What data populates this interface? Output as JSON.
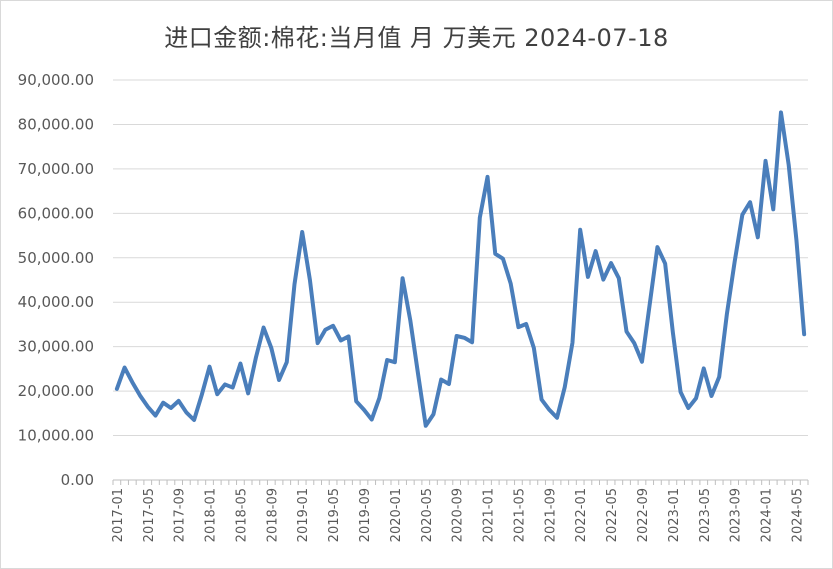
{
  "chart_data": {
    "type": "line",
    "title": "进口金额:棉花:当月值 月 万美元 2024-07-18",
    "xlabel": "",
    "ylabel": "",
    "ylim": [
      0,
      90000
    ],
    "yticks": [
      "0.00",
      "10,000.00",
      "20,000.00",
      "30,000.00",
      "40,000.00",
      "50,000.00",
      "60,000.00",
      "70,000.00",
      "80,000.00",
      "90,000.00"
    ],
    "xtick_labels": [
      "2017-01",
      "2017-05",
      "2017-09",
      "2018-01",
      "2018-05",
      "2018-09",
      "2019-01",
      "2019-05",
      "2019-09",
      "2020-01",
      "2020-05",
      "2020-09",
      "2021-01",
      "2021-05",
      "2021-09",
      "2022-01",
      "2022-05",
      "2022-09",
      "2023-01",
      "2023-05",
      "2023-09",
      "2024-01",
      "2024-05"
    ],
    "grid": true,
    "legend": "none",
    "line_color": "#4a7ebb",
    "x": [
      "2017-01",
      "2017-02",
      "2017-03",
      "2017-04",
      "2017-05",
      "2017-06",
      "2017-07",
      "2017-08",
      "2017-09",
      "2017-10",
      "2017-11",
      "2017-12",
      "2018-01",
      "2018-02",
      "2018-03",
      "2018-04",
      "2018-05",
      "2018-06",
      "2018-07",
      "2018-08",
      "2018-09",
      "2018-10",
      "2018-11",
      "2018-12",
      "2019-01",
      "2019-02",
      "2019-03",
      "2019-04",
      "2019-05",
      "2019-06",
      "2019-07",
      "2019-08",
      "2019-09",
      "2019-10",
      "2019-11",
      "2019-12",
      "2020-01",
      "2020-02",
      "2020-03",
      "2020-04",
      "2020-05",
      "2020-06",
      "2020-07",
      "2020-08",
      "2020-09",
      "2020-10",
      "2020-11",
      "2020-12",
      "2021-01",
      "2021-02",
      "2021-03",
      "2021-04",
      "2021-05",
      "2021-06",
      "2021-07",
      "2021-08",
      "2021-09",
      "2021-10",
      "2021-11",
      "2021-12",
      "2022-01",
      "2022-02",
      "2022-03",
      "2022-04",
      "2022-05",
      "2022-06",
      "2022-07",
      "2022-08",
      "2022-09",
      "2022-10",
      "2022-11",
      "2022-12",
      "2023-01",
      "2023-02",
      "2023-03",
      "2023-04",
      "2023-05",
      "2023-06",
      "2023-07",
      "2023-08",
      "2023-09",
      "2023-10",
      "2023-11",
      "2023-12",
      "2024-01",
      "2024-02",
      "2024-03",
      "2024-04",
      "2024-05",
      "2024-06"
    ],
    "series": [
      {
        "values": [
          20500,
          25300,
          22000,
          19000,
          16500,
          14500,
          17400,
          16200,
          17800,
          15200,
          13500,
          19200,
          25500,
          19300,
          21500,
          20800,
          26200,
          19500,
          27500,
          34300,
          29700,
          22500,
          26500,
          44000,
          55800,
          45000,
          30800,
          33800,
          34700,
          31400,
          32300,
          17700,
          15800,
          13600,
          18500,
          27000,
          26500,
          45400,
          35900,
          23900,
          12200,
          14800,
          22600,
          21600,
          32400,
          32000,
          31000,
          59000,
          68200,
          50900,
          49800,
          44200,
          34400,
          35100,
          29700,
          18100,
          15800,
          14000,
          20900,
          30900,
          56300,
          45700,
          51500,
          45100,
          48800,
          45400,
          33400,
          30800,
          26600,
          39500,
          52400,
          48700,
          33200,
          19800,
          16200,
          18400,
          25100,
          18900,
          23200,
          37400,
          49100,
          59700,
          62500,
          54600,
          71800,
          60900,
          82700,
          70900,
          54000,
          32800
        ]
      }
    ]
  }
}
